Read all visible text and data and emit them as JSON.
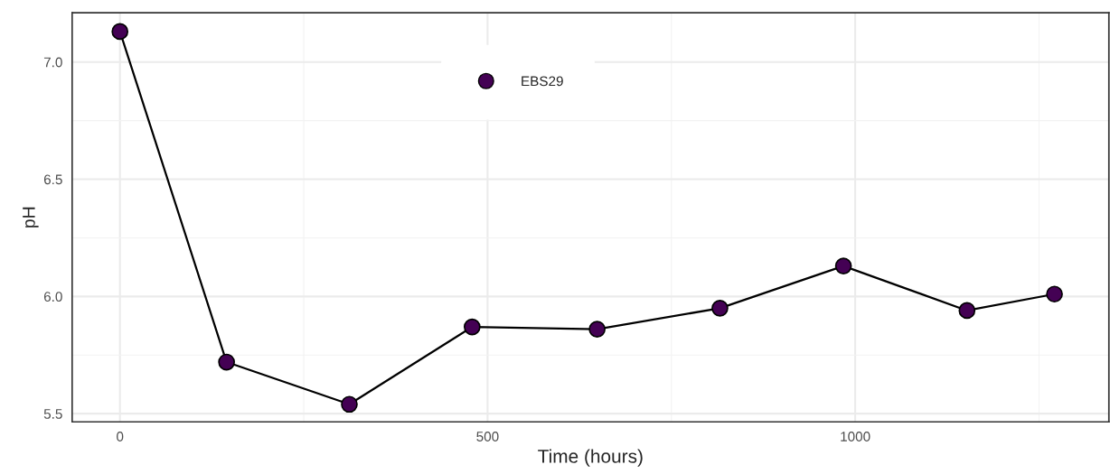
{
  "chart_data": {
    "type": "line",
    "xlabel": "Time (hours)",
    "ylabel": "pH",
    "x": [
      0,
      145,
      312,
      479,
      649,
      816,
      984,
      1152,
      1271
    ],
    "series": [
      {
        "name": "EBS29",
        "color": "#440154",
        "values": [
          7.13,
          5.72,
          5.54,
          5.87,
          5.86,
          5.95,
          6.13,
          5.94,
          6.01
        ]
      }
    ],
    "xlim": [
      -65,
      1345
    ],
    "ylim": [
      5.465,
      7.21
    ],
    "xticks": [
      0,
      500,
      1000
    ],
    "yticks": [
      {
        "value": 5.5,
        "label": "5.5"
      },
      {
        "value": 6.0,
        "label": "6.0"
      },
      {
        "value": 6.5,
        "label": "6.5"
      },
      {
        "value": 7.0,
        "label": "7.0"
      }
    ],
    "grid": true,
    "legend": "top",
    "marker": "circle",
    "line_style": "solid"
  }
}
